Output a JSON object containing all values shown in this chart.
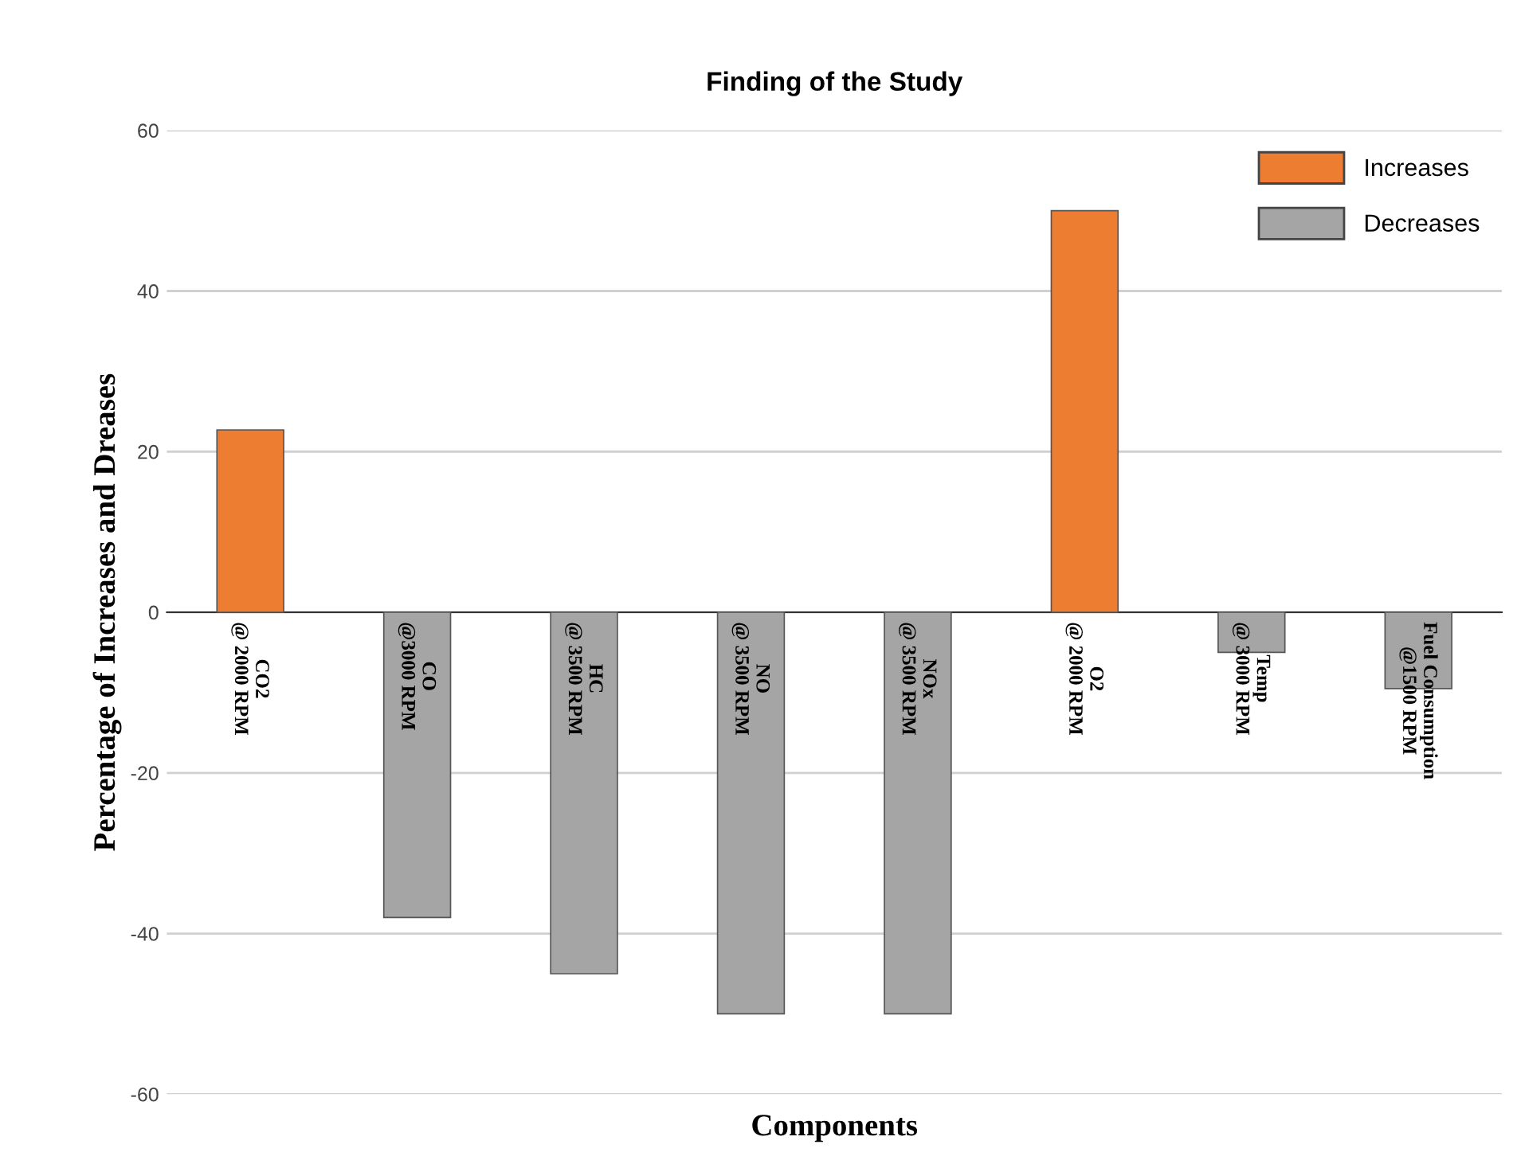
{
  "chart_data": {
    "type": "bar",
    "title": "Finding of the Study",
    "xlabel": "Components",
    "ylabel": "Percentage of Increases and Dreases",
    "categories": [
      "CO2\n@ 2000 RPM",
      "CO\n@3000 RPM",
      "HC\n@ 3500 RPM",
      "NO\n@ 3500 RPM",
      "NOx\n@ 3500 RPM",
      "O2\n@ 2000 RPM",
      "Temp\n@ 3000 RPM",
      "Fuel Consumption\n@1500 RPM"
    ],
    "series": [
      {
        "name": "Increases",
        "color": "#ed7d31",
        "values": [
          22.7,
          null,
          null,
          null,
          null,
          50,
          null,
          null
        ]
      },
      {
        "name": "Decreases",
        "color": "#a5a5a5",
        "values": [
          null,
          -38,
          -45,
          -50,
          -50,
          null,
          -5,
          -9.5
        ]
      }
    ],
    "stacked": true,
    "ylim": [
      -60,
      60
    ],
    "yticks": [
      -60,
      -40,
      -20,
      0,
      20,
      40,
      60
    ],
    "grid": "y",
    "legend": "top right"
  }
}
